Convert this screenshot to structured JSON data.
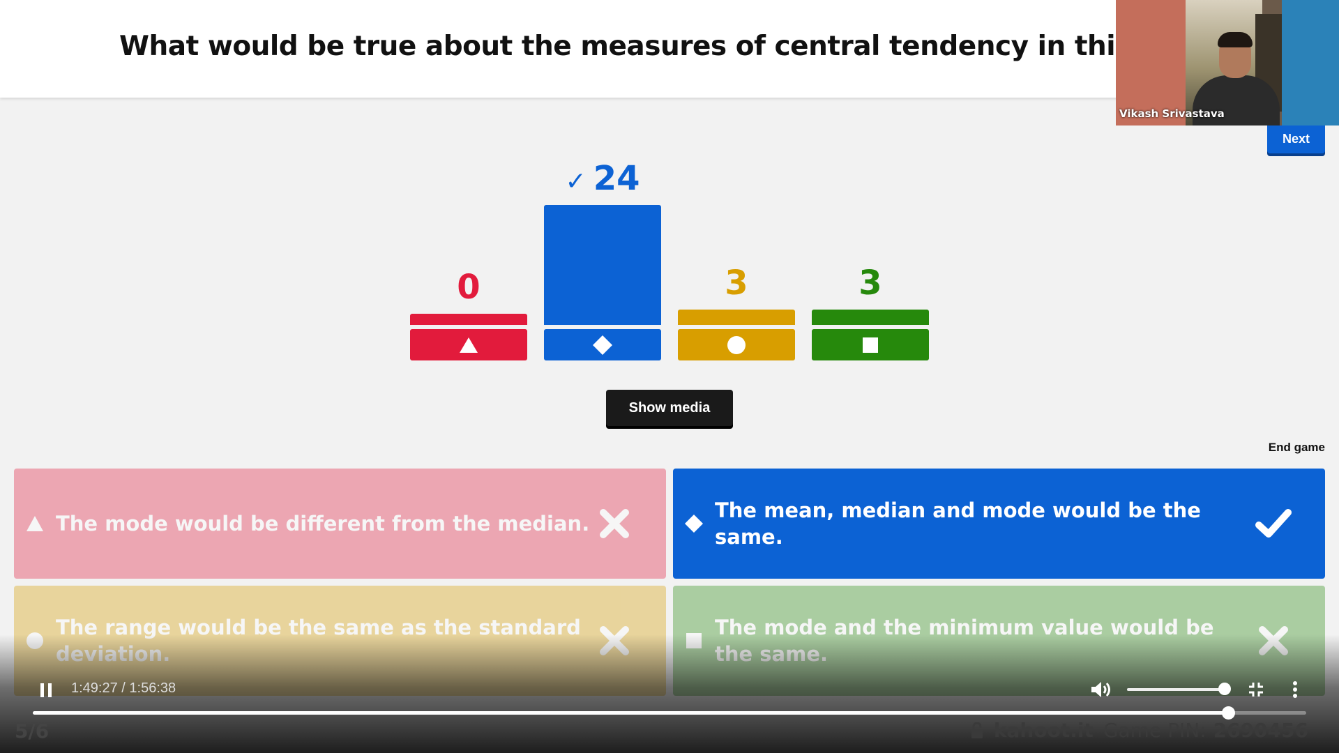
{
  "question": {
    "title": "What would be true about the measures of central tendency in this hist"
  },
  "webcam": {
    "participant_name": "Vikash Srivastava"
  },
  "toolbar": {
    "next_label": "Next",
    "show_media_label": "Show media",
    "end_game_label": "End game"
  },
  "results": {
    "max_count": 24,
    "bars": [
      {
        "count": "0",
        "value": 0,
        "color": "#e21b3c",
        "shape": "triangle-icon",
        "correct": false
      },
      {
        "count": "24",
        "value": 24,
        "color": "#0c62d4",
        "shape": "diamond-icon",
        "correct": true,
        "check": "✓"
      },
      {
        "count": "3",
        "value": 3,
        "color": "#d89e00",
        "shape": "circle-icon",
        "correct": false
      },
      {
        "count": "3",
        "value": 3,
        "color": "#26890c",
        "shape": "square-icon",
        "correct": false
      }
    ]
  },
  "answers": [
    {
      "text": "The mode would be different from the median.",
      "correct": false,
      "shape": "triangle-icon",
      "mark": "close-icon"
    },
    {
      "text": "The mean, median and mode would be the same.",
      "correct": true,
      "shape": "diamond-icon",
      "mark": "check-icon"
    },
    {
      "text": "The range would be the same as the standard deviation.",
      "correct": false,
      "shape": "circle-icon",
      "mark": "close-icon"
    },
    {
      "text": "The mode and the minimum value would be the same.",
      "correct": false,
      "shape": "square-icon",
      "mark": "close-icon"
    }
  ],
  "player": {
    "current_time": "1:49:27",
    "separator": " / ",
    "duration": "1:56:38",
    "progress_fraction": 0.9384,
    "volume_fraction": 1.0
  },
  "footer": {
    "counter": "5/6",
    "brand": "kahoot.it",
    "pin_label": "Game PIN:",
    "pin": "2690456"
  },
  "colors": {
    "red": "#e21b3c",
    "blue": "#0c62d4",
    "yellow": "#d89e00",
    "green": "#26890c"
  }
}
